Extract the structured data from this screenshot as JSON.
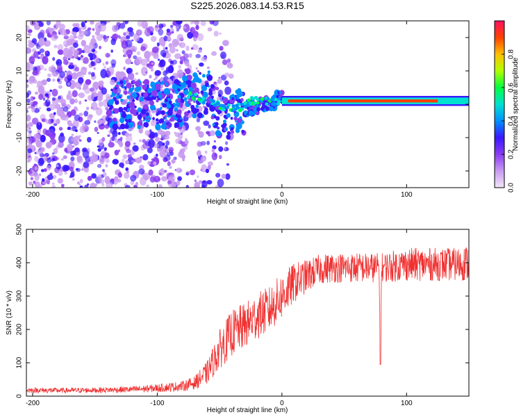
{
  "figure_title": "S225.2026.083.14.53.R15",
  "chart_data": [
    {
      "type": "heatmap",
      "title": "",
      "xlabel": "Height of straight line (km)",
      "ylabel": "Frequency (Hz)",
      "xlim": [
        -205,
        150
      ],
      "ylim": [
        -25,
        25
      ],
      "xticks": [
        -200,
        -100,
        0,
        100
      ],
      "yticks": [
        -20,
        -10,
        0,
        10,
        20
      ],
      "colorbar": {
        "label": "Normalized spectral amplitude",
        "range": [
          0,
          1
        ],
        "ticks": [
          0.0,
          0.2,
          0.4,
          0.6,
          0.8
        ],
        "colors": [
          "#f2e6fa",
          "#c89bf0",
          "#8a3cf0",
          "#3a18ff",
          "#0090ff",
          "#00e0d0",
          "#00ff40",
          "#b0ff00",
          "#ffc000",
          "#ff4000",
          "#ff1060"
        ]
      },
      "features": [
        {
          "description": "carrier ridge",
          "x_range": [
            0,
            150
          ],
          "frequency": 1,
          "amplitude": 0.9
        },
        {
          "description": "transition ridge",
          "x_range": [
            -75,
            0
          ],
          "frequency_range": [
            -10,
            6
          ],
          "amplitude": 0.3
        },
        {
          "description": "scattered noise",
          "x_range": [
            -205,
            -60
          ],
          "frequency_range": [
            -25,
            25
          ],
          "amplitude": 0.05
        }
      ]
    },
    {
      "type": "line",
      "title": "",
      "xlabel": "Height of straight line (km)",
      "ylabel": "SNR (10 * v/v)",
      "xlim": [
        -205,
        150
      ],
      "ylim": [
        0,
        500
      ],
      "xticks": [
        -200,
        -100,
        0,
        100
      ],
      "yticks": [
        0,
        100,
        200,
        300,
        400,
        500
      ],
      "line_color": "#f03030",
      "series": [
        {
          "x": [
            -205,
            -180,
            -150,
            -120,
            -100,
            -80,
            -70,
            -60,
            -50,
            -40,
            -30,
            -20,
            -10,
            0,
            10,
            20,
            30,
            40,
            60,
            78,
            79,
            80,
            100,
            120,
            140,
            150
          ],
          "values": [
            18,
            17,
            18,
            20,
            24,
            30,
            40,
            70,
            140,
            190,
            210,
            240,
            260,
            300,
            340,
            360,
            380,
            385,
            385,
            385,
            95,
            385,
            395,
            395,
            395,
            400
          ],
          "noise": [
            8,
            8,
            8,
            10,
            12,
            15,
            20,
            35,
            60,
            70,
            70,
            70,
            70,
            70,
            60,
            50,
            45,
            45,
            45,
            45,
            0,
            45,
            50,
            50,
            50,
            55
          ]
        }
      ]
    }
  ]
}
